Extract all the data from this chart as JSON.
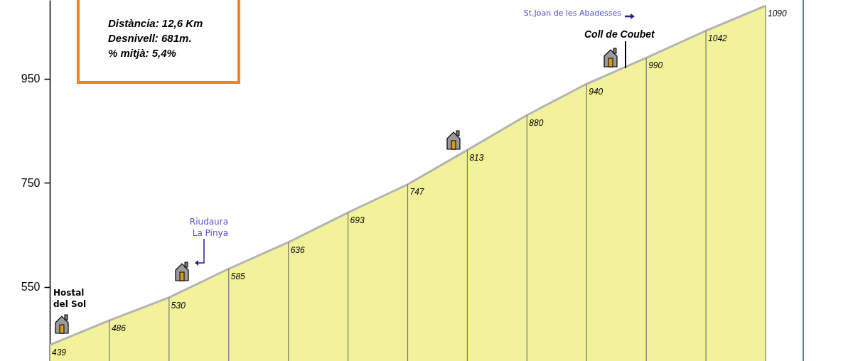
{
  "chart_data": {
    "type": "area",
    "categories": [
      null,
      null,
      null,
      null,
      null,
      null,
      null,
      null,
      null,
      null,
      null,
      null,
      null
    ],
    "series": [
      {
        "color": "#b4b4b4",
        "values": [
          439,
          486,
          530,
          585,
          636,
          693,
          747,
          813,
          880,
          940,
          990,
          1042,
          1090
        ]
      }
    ],
    "ylim": [
      408,
      1101
    ],
    "yticks": [
      550,
      750,
      950
    ],
    "grid": "x",
    "data_labels": true,
    "tick_labels": "y",
    "annotations": [
      "Distància: 12,6 Km",
      "Desnivell: 681m.",
      "% mitjà: 5,4%",
      "Hostal del Sol",
      "Riudaura La Pinya",
      "Coll de Coubet",
      "St.Joan de les Abadesses"
    ]
  }
}
